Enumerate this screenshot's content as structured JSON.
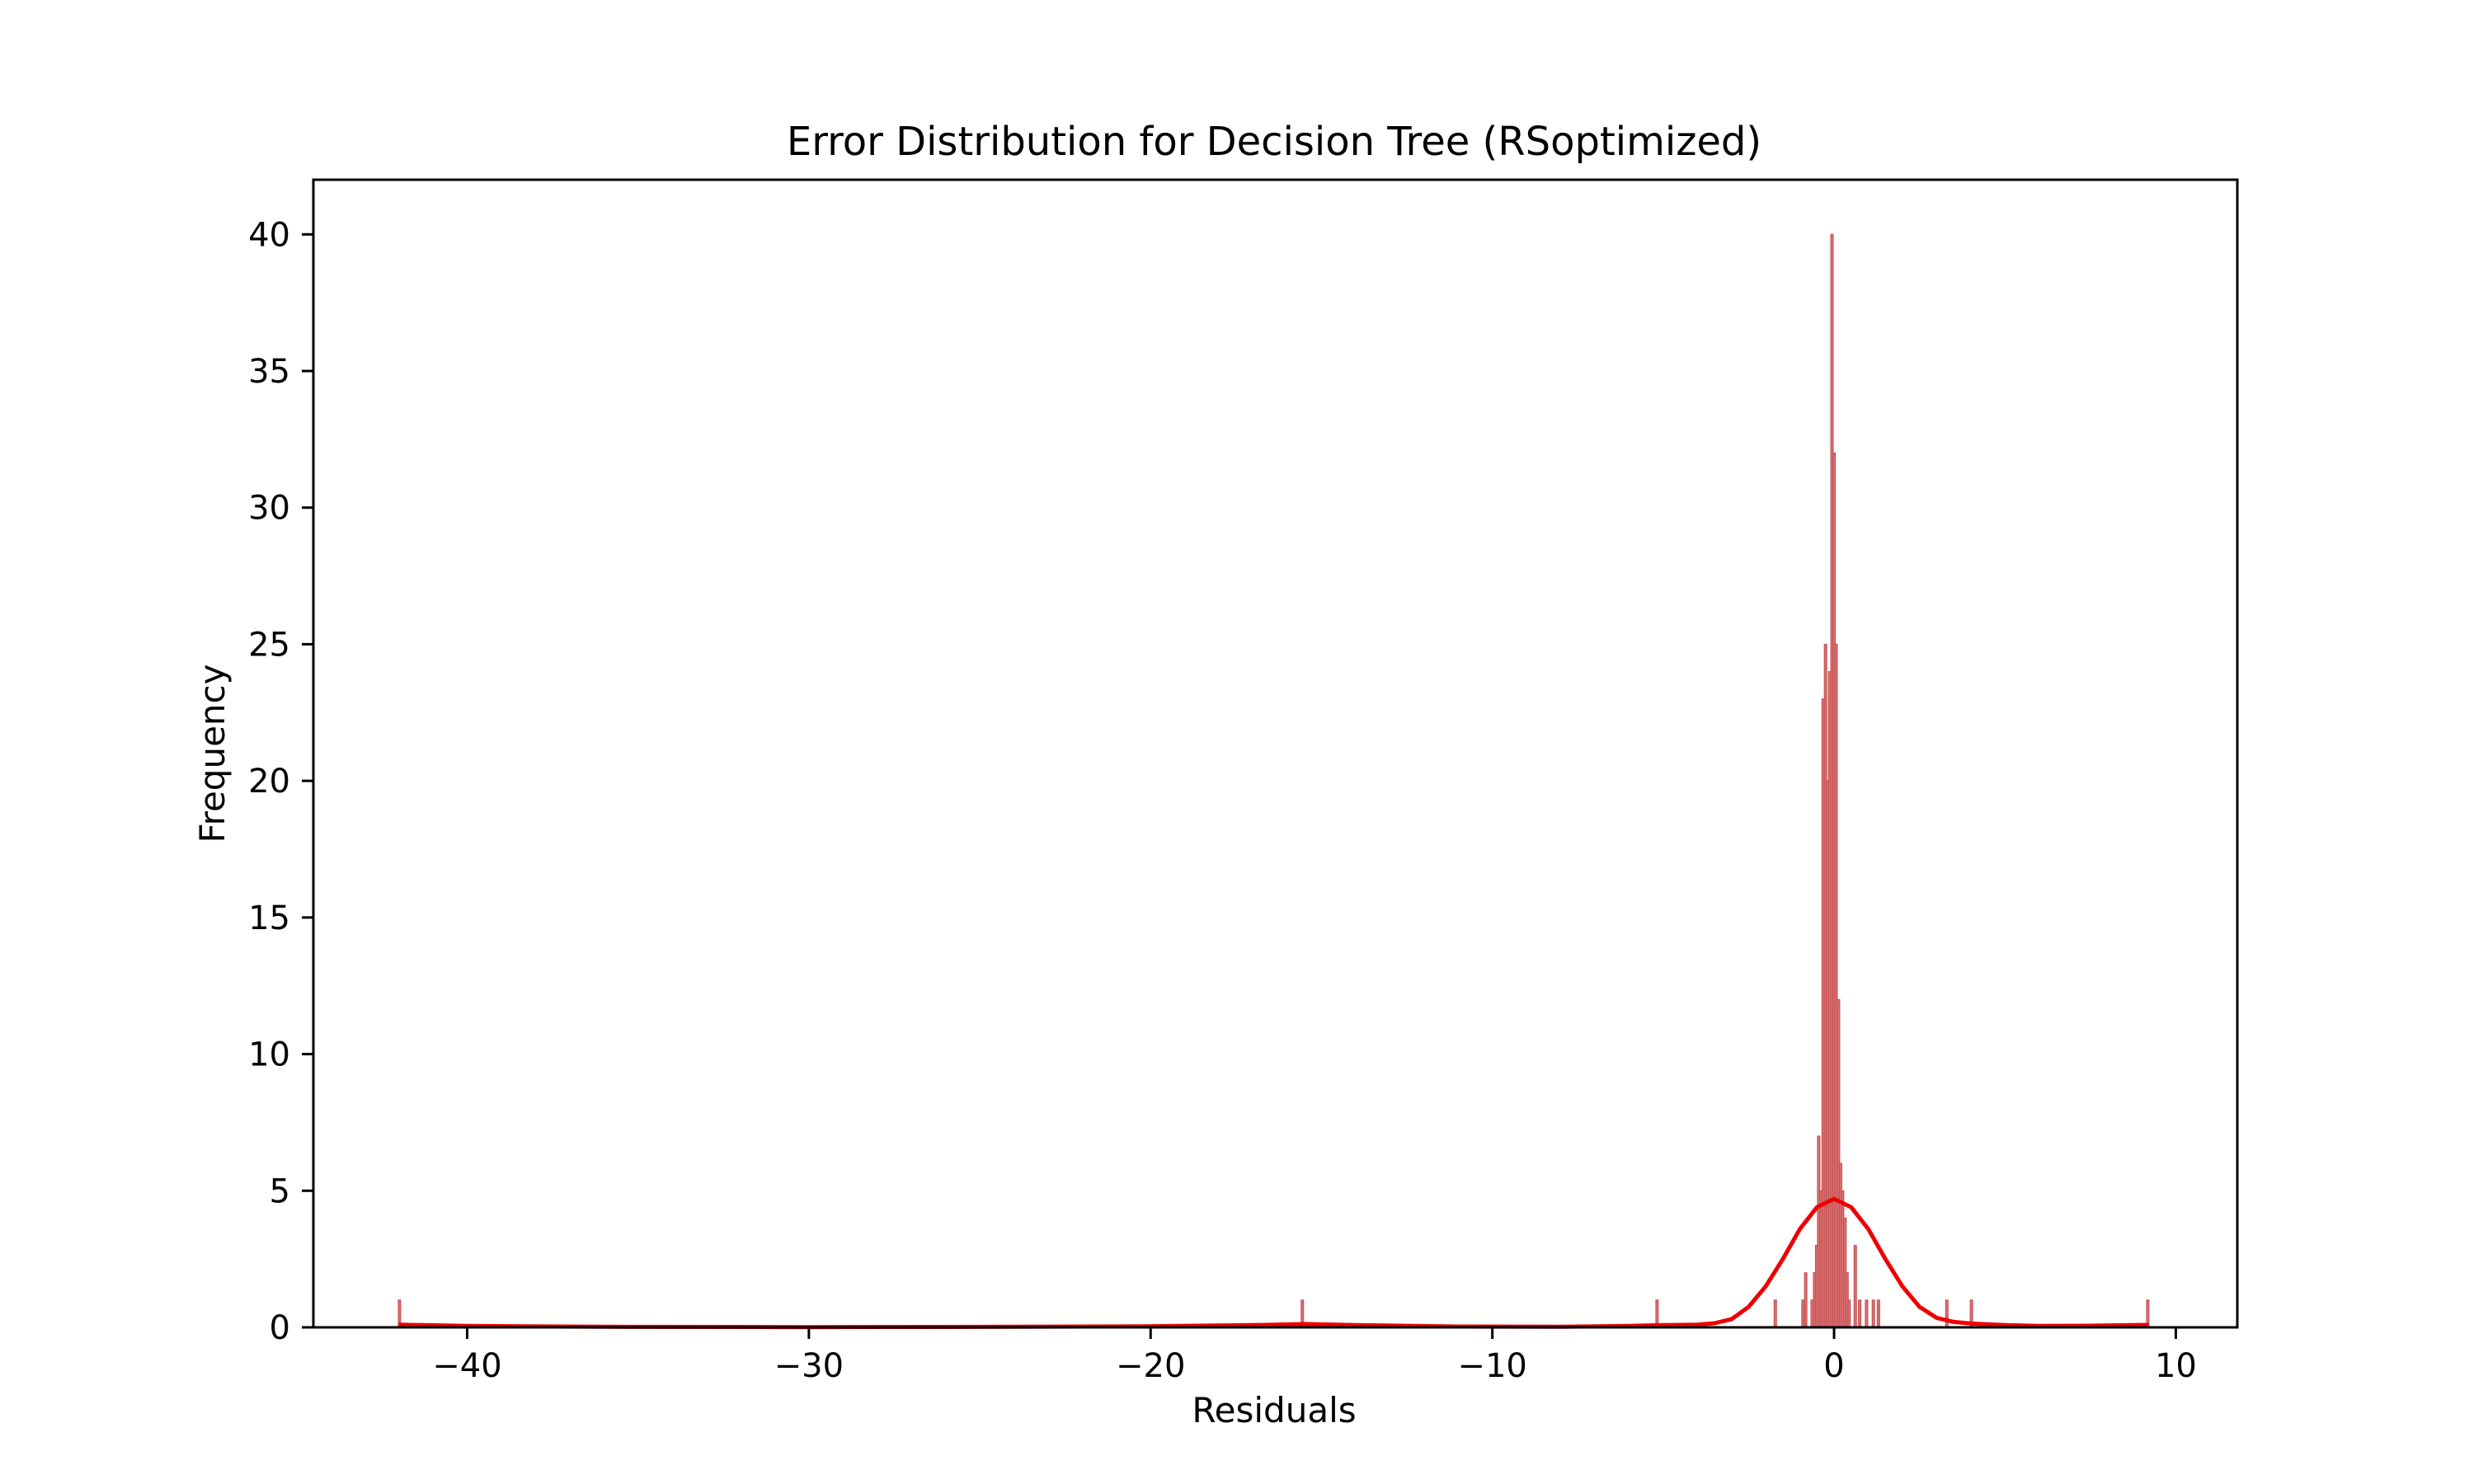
{
  "chart_data": {
    "type": "histogram",
    "title": "Error Distribution for Decision Tree (RSoptimized)",
    "xlabel": "Residuals",
    "ylabel": "Frequency",
    "xlim": [
      -44.5,
      11.8
    ],
    "ylim": [
      0,
      42
    ],
    "x_ticks": [
      {
        "value": -40,
        "label": "−40"
      },
      {
        "value": -30,
        "label": "−30"
      },
      {
        "value": -20,
        "label": "−20"
      },
      {
        "value": -10,
        "label": "−10"
      },
      {
        "value": 0,
        "label": "0"
      },
      {
        "value": 10,
        "label": "10"
      }
    ],
    "y_ticks": [
      {
        "value": 0,
        "label": "0"
      },
      {
        "value": 5,
        "label": "5"
      },
      {
        "value": 10,
        "label": "10"
      },
      {
        "value": 15,
        "label": "15"
      },
      {
        "value": 20,
        "label": "20"
      },
      {
        "value": 25,
        "label": "25"
      },
      {
        "value": 30,
        "label": "30"
      },
      {
        "value": 35,
        "label": "35"
      },
      {
        "value": 40,
        "label": "40"
      }
    ],
    "grid": false,
    "bin_width": 0.0635,
    "bins": [
      {
        "x": -41.98,
        "count": 1
      },
      {
        "x": -15.56,
        "count": 1
      },
      {
        "x": -5.18,
        "count": 1
      },
      {
        "x": -1.72,
        "count": 1
      },
      {
        "x": -0.91,
        "count": 1
      },
      {
        "x": -0.83,
        "count": 2
      },
      {
        "x": -0.64,
        "count": 1
      },
      {
        "x": -0.57,
        "count": 2
      },
      {
        "x": -0.51,
        "count": 3
      },
      {
        "x": -0.45,
        "count": 7
      },
      {
        "x": -0.38,
        "count": 5
      },
      {
        "x": -0.32,
        "count": 23
      },
      {
        "x": -0.25,
        "count": 25
      },
      {
        "x": -0.19,
        "count": 20
      },
      {
        "x": -0.13,
        "count": 24
      },
      {
        "x": -0.06,
        "count": 40
      },
      {
        "x": 0.0,
        "count": 32
      },
      {
        "x": 0.06,
        "count": 25
      },
      {
        "x": 0.13,
        "count": 12
      },
      {
        "x": 0.19,
        "count": 6
      },
      {
        "x": 0.25,
        "count": 5
      },
      {
        "x": 0.32,
        "count": 4
      },
      {
        "x": 0.38,
        "count": 2
      },
      {
        "x": 0.44,
        "count": 1
      },
      {
        "x": 0.62,
        "count": 3
      },
      {
        "x": 0.75,
        "count": 1
      },
      {
        "x": 0.95,
        "count": 1
      },
      {
        "x": 1.15,
        "count": 1
      },
      {
        "x": 1.3,
        "count": 1
      },
      {
        "x": 3.3,
        "count": 1
      },
      {
        "x": 4.02,
        "count": 1
      },
      {
        "x": 9.18,
        "count": 1
      }
    ],
    "kde": {
      "name": "KDE",
      "color": "#ee0000",
      "points": [
        [
          -42.0,
          0.1
        ],
        [
          -40.0,
          0.05
        ],
        [
          -36.0,
          0.02
        ],
        [
          -30.0,
          0.01
        ],
        [
          -24.0,
          0.02
        ],
        [
          -20.0,
          0.04
        ],
        [
          -17.0,
          0.08
        ],
        [
          -15.5,
          0.12
        ],
        [
          -14.0,
          0.08
        ],
        [
          -11.0,
          0.03
        ],
        [
          -8.0,
          0.02
        ],
        [
          -6.0,
          0.05
        ],
        [
          -5.0,
          0.08
        ],
        [
          -4.0,
          0.1
        ],
        [
          -3.5,
          0.15
        ],
        [
          -3.0,
          0.3
        ],
        [
          -2.5,
          0.75
        ],
        [
          -2.0,
          1.5
        ],
        [
          -1.5,
          2.5
        ],
        [
          -1.0,
          3.6
        ],
        [
          -0.5,
          4.4
        ],
        [
          0.0,
          4.7
        ],
        [
          0.5,
          4.4
        ],
        [
          1.0,
          3.6
        ],
        [
          1.5,
          2.5
        ],
        [
          2.0,
          1.5
        ],
        [
          2.5,
          0.75
        ],
        [
          3.0,
          0.35
        ],
        [
          3.5,
          0.2
        ],
        [
          4.0,
          0.14
        ],
        [
          5.0,
          0.08
        ],
        [
          6.0,
          0.05
        ],
        [
          7.5,
          0.06
        ],
        [
          9.2,
          0.09
        ]
      ]
    },
    "bar_fill": "#d9706f",
    "bar_edge": "#c44e52"
  }
}
